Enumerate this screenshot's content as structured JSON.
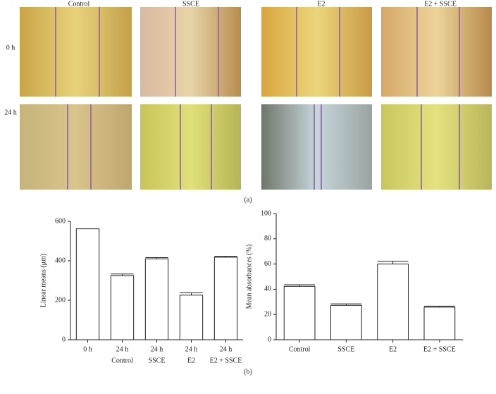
{
  "micrographs": {
    "columns": [
      "Control",
      "SSCE",
      "E2",
      "E2 + SSCE"
    ],
    "rows": [
      "0 h",
      "24 h"
    ],
    "label": "(a)"
  },
  "panel_label": "(b)",
  "chart_data": [
    {
      "type": "bar",
      "ylabel": "Linear means (μm)",
      "categories": [
        "0 h",
        "24 h",
        "24 h",
        "24 h",
        "24 h"
      ],
      "groups": [
        null,
        "Control",
        "SSCE",
        "E2",
        "E2 + SSCE"
      ],
      "values": [
        562,
        325,
        410,
        226,
        418
      ],
      "errors": [
        0,
        8,
        6,
        12,
        5
      ],
      "color": "#ffffff",
      "ylim": [
        0,
        600
      ],
      "yticks": [
        0,
        200,
        400,
        600
      ]
    },
    {
      "type": "bar",
      "ylabel": "Mean absorbances (%)",
      "categories": [
        "Control",
        "SSCE",
        "E2",
        "E2 + SSCE"
      ],
      "values": [
        42.3,
        27.2,
        60,
        25.8
      ],
      "errors": [
        1.3,
        1.2,
        2.2,
        0.8
      ],
      "color": "#ffffff",
      "ylim": [
        0,
        100
      ],
      "yticks": [
        0,
        20,
        40,
        60,
        80,
        100
      ]
    }
  ]
}
